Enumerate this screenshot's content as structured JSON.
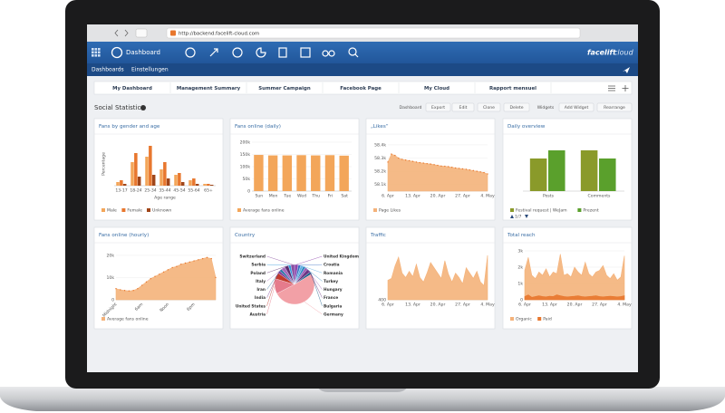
{
  "browser": {
    "url": "http://backend.facelift-cloud.com"
  },
  "header": {
    "title": "Dashboard",
    "logo": [
      "facelift",
      "cloud"
    ]
  },
  "nav": [
    "Dashboards",
    "Einstellungen"
  ],
  "tabs": [
    "My Dashboard",
    "Management Summary",
    "Summer Campaign",
    "Facebook Page",
    "My Cloud",
    "Rapport mensuel"
  ],
  "section_title": "Social Statistics",
  "toolbar": [
    "Dashboard",
    "Export",
    "Edit",
    "Clone",
    "Delete",
    "Widgets",
    "Add Widget",
    "Rearrange"
  ],
  "chart_data": [
    {
      "type": "bar",
      "title": "Fans by gender and age",
      "y_label": "Percentage",
      "x_label": "Age range",
      "categories": [
        "13-17",
        "18-24",
        "25-34",
        "35-44",
        "45-54",
        "55-64",
        "65+"
      ],
      "series": [
        {
          "name": "Male",
          "color": "#f3a65a",
          "values": [
            2,
            13,
            16,
            9,
            6,
            3,
            1
          ]
        },
        {
          "name": "Female",
          "color": "#e8772e",
          "values": [
            3,
            18,
            22,
            13,
            7,
            4,
            1
          ]
        },
        {
          "name": "Unknown",
          "color": "#a0461a",
          "values": [
            1,
            5,
            6,
            4,
            2,
            1,
            0.5
          ]
        }
      ],
      "ylim": [
        0,
        24
      ]
    },
    {
      "type": "bar",
      "title": "Fans online (daily)",
      "categories": [
        "Sun",
        "Mon",
        "Tue",
        "Wed",
        "Thu",
        "Fri",
        "Sat"
      ],
      "series": [
        {
          "name": "Average fans online",
          "color": "#f3a65a",
          "values": [
            148000,
            146000,
            146000,
            147000,
            146000,
            147000,
            145000
          ]
        }
      ],
      "ylim": [
        0,
        200000
      ],
      "yticks": [
        0,
        {
          "value": 50000,
          "label": "50k"
        },
        {
          "value": 100000,
          "label": "100k"
        },
        {
          "value": 150000,
          "label": "150k"
        },
        {
          "value": 200000,
          "label": "200k"
        }
      ]
    },
    {
      "type": "area",
      "title": "„Likes“",
      "categories": [
        "6. Apr",
        null,
        null,
        null,
        null,
        null,
        null,
        "13. Apr",
        null,
        null,
        null,
        null,
        null,
        null,
        "20. Apr",
        null,
        null,
        null,
        null,
        null,
        null,
        "27. Apr",
        null,
        null,
        null,
        null,
        null,
        null,
        "4. May"
      ],
      "series": [
        {
          "name": "Page Likes",
          "color": "#f4b27a",
          "values": [
            58270,
            58330,
            58320,
            58300,
            58290,
            58285,
            58280,
            58275,
            58270,
            58265,
            58262,
            58258,
            58255,
            58250,
            58245,
            58240,
            58238,
            58235,
            58230,
            58225,
            58222,
            58218,
            58215,
            58210,
            58205,
            58200,
            58195,
            58190,
            58180
          ]
        }
      ],
      "ylim": [
        58050,
        58420
      ],
      "yticks": [
        {
          "value": 58100,
          "label": "58.1k"
        },
        {
          "value": 58200,
          "label": "58.2k"
        },
        {
          "value": 58300,
          "label": "58.3k"
        },
        {
          "value": 58400,
          "label": "58.4k"
        }
      ]
    },
    {
      "type": "bar",
      "title": "Daily overview",
      "categories": [
        "Posts",
        "Comments"
      ],
      "series": [
        {
          "name": "Festival request | WeJam",
          "color": "#8a9a2a",
          "values": [
            4,
            5
          ]
        },
        {
          "name": "Prezent",
          "color": "#5aa02c",
          "values": [
            5,
            4
          ]
        }
      ],
      "ylim": [
        0,
        6
      ],
      "legend_page": "1/7"
    },
    {
      "type": "area",
      "title": "Fans online (hourly)",
      "x_labels_rotated": true,
      "categories": [
        "Midnight",
        null,
        null,
        null,
        null,
        null,
        "6am",
        null,
        null,
        null,
        null,
        null,
        "Noon",
        null,
        null,
        null,
        null,
        null,
        "6pm",
        null,
        null,
        null,
        null,
        null
      ],
      "series": [
        {
          "name": "Average fans online",
          "color": "#f4b27a",
          "values": [
            5000,
            4500,
            4200,
            4000,
            4200,
            5000,
            6500,
            8000,
            9500,
            10500,
            11500,
            12500,
            13500,
            14500,
            15000,
            16000,
            16500,
            17000,
            17500,
            18000,
            18500,
            19000,
            18500,
            10000
          ]
        }
      ],
      "ylim": [
        0,
        22000
      ],
      "yticks": [
        0,
        {
          "value": 10000,
          "label": "10k"
        },
        {
          "value": 20000,
          "label": "20k"
        }
      ]
    },
    {
      "type": "pie",
      "title": "Country",
      "categories": [
        "United Kingdom",
        "Croatia",
        "Romania",
        "Turkey",
        "Hungary",
        "France",
        "Bulgaria",
        "Germany",
        "Austria",
        "United States",
        "India",
        "Iran",
        "Italy",
        "Poland",
        "Serbia",
        "Switzerland"
      ],
      "values": [
        3,
        2,
        2,
        2,
        2,
        3,
        2,
        50,
        12,
        5,
        2,
        2,
        3,
        3,
        2,
        3
      ],
      "colors": [
        "#8e44ad",
        "#3b6fc4",
        "#5dade2",
        "#2e86c1",
        "#9b59b6",
        "#6c3483",
        "#1f618d",
        "#f2a0a6",
        "#e57b8c",
        "#c0392b",
        "#7d3c98",
        "#2874a6",
        "#a569bd",
        "#5b2c6f",
        "#3498db",
        "#884ea0"
      ]
    },
    {
      "type": "area",
      "title": "Traffic",
      "categories": [
        "6. Apr",
        null,
        null,
        null,
        null,
        null,
        null,
        "13. Apr",
        null,
        null,
        null,
        null,
        null,
        null,
        "20. Apr",
        null,
        null,
        null,
        null,
        null,
        null,
        "27. Apr",
        null,
        null,
        null,
        null,
        null,
        null,
        "4. May"
      ],
      "series": [
        {
          "name": "Traffic",
          "color": "#f4b27a",
          "values": [
            620,
            640,
            780,
            880,
            700,
            650,
            720,
            660,
            800,
            650,
            600,
            700,
            820,
            760,
            700,
            640,
            840,
            690,
            600,
            700,
            650,
            580,
            760,
            700,
            640,
            720,
            600,
            560,
            900
          ]
        }
      ],
      "ylim": [
        400,
        950
      ],
      "yticks": [
        400
      ],
      "legend": false
    },
    {
      "type": "area",
      "title": "Total reach",
      "categories": [
        "6. Apr",
        null,
        null,
        null,
        null,
        null,
        null,
        "13. Apr",
        null,
        null,
        null,
        null,
        null,
        null,
        "20. Apr",
        null,
        null,
        null,
        null,
        null,
        null,
        "27. Apr",
        null,
        null,
        null,
        null,
        null,
        null,
        "4. May"
      ],
      "series": [
        {
          "name": "Organic",
          "color": "#f4b27a",
          "values": [
            1800,
            2600,
            1500,
            1300,
            1700,
            1500,
            1900,
            1400,
            1700,
            1600,
            2800,
            1500,
            1600,
            1400,
            2000,
            1700,
            1500,
            2300,
            1600,
            1400,
            1700,
            1800,
            2100,
            1500,
            1300,
            1600,
            1200,
            1400,
            2700
          ]
        },
        {
          "name": "Paid",
          "color": "#e8772e",
          "values": [
            200,
            300,
            150,
            200,
            250,
            200,
            180,
            220,
            200,
            300,
            250,
            200,
            180,
            200,
            220,
            250,
            200,
            180,
            200,
            220,
            250,
            200,
            180,
            200,
            220,
            200,
            180,
            200,
            250
          ]
        }
      ],
      "ylim": [
        0,
        3000
      ],
      "yticks": [
        0,
        {
          "value": 1000,
          "label": "1k"
        },
        {
          "value": 2000,
          "label": "2k"
        },
        {
          "value": 3000,
          "label": "3k"
        }
      ]
    }
  ]
}
